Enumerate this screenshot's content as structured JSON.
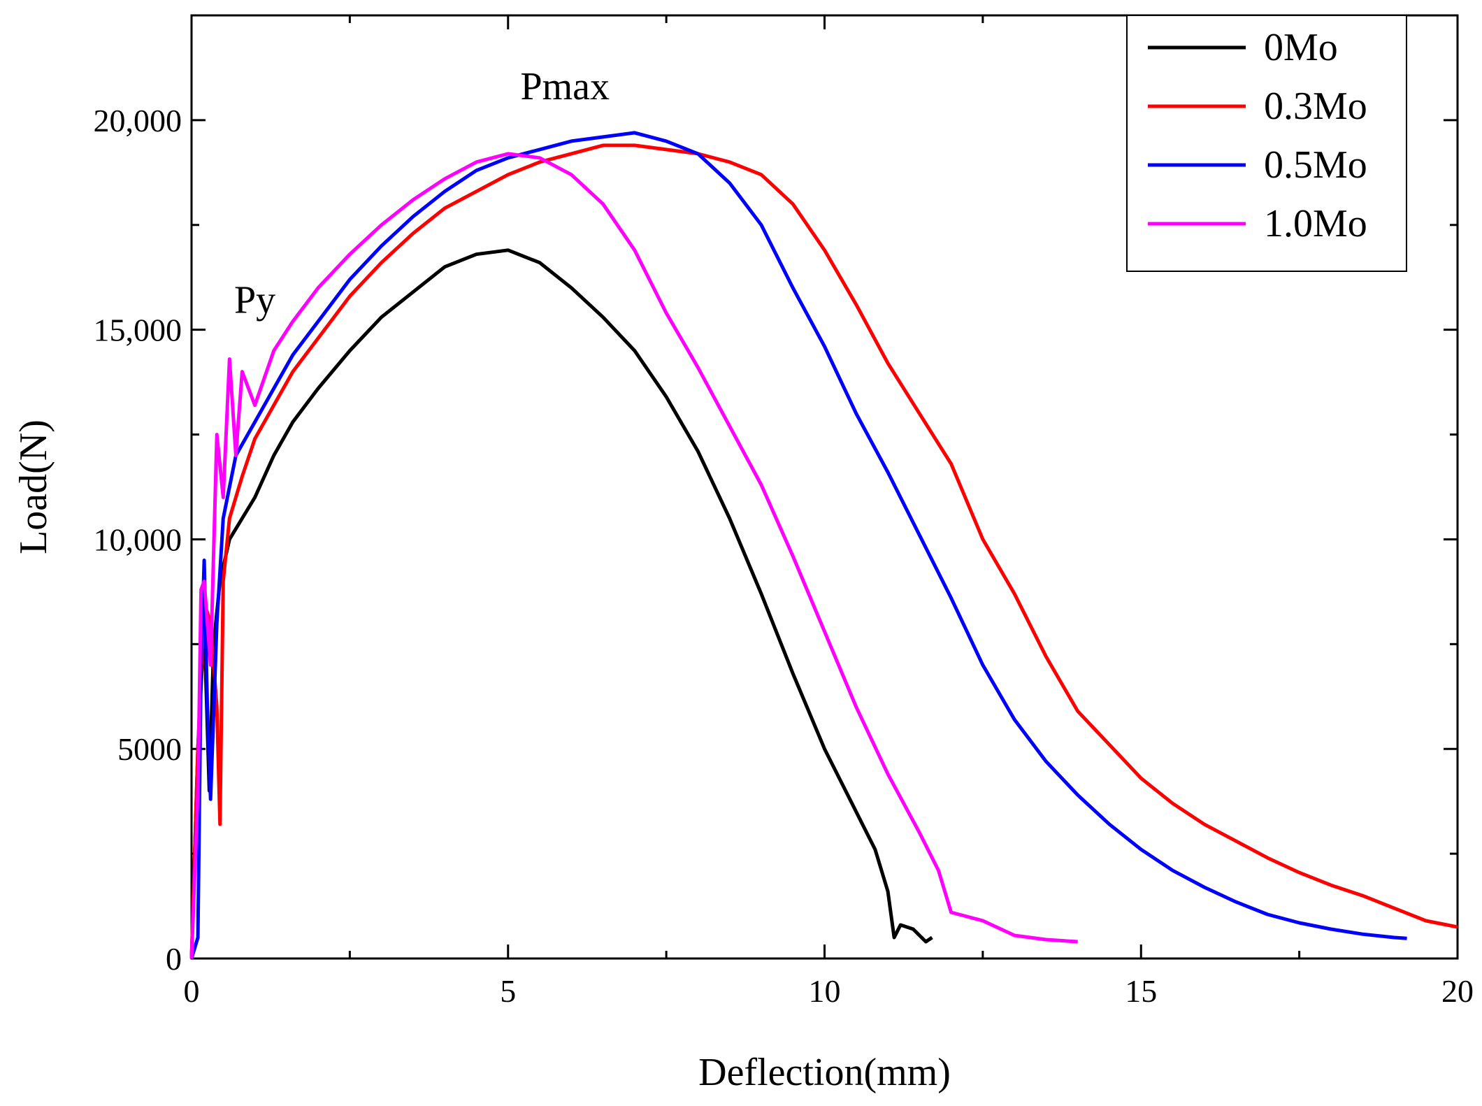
{
  "chart_data": {
    "type": "line",
    "xlabel": "Deflection(mm)",
    "ylabel": "Load(N)",
    "xlim": [
      0,
      20
    ],
    "ylim": [
      0,
      22500
    ],
    "x_ticks": [
      0,
      5,
      10,
      15,
      20
    ],
    "x_tick_labels": [
      "0",
      "5",
      "10",
      "15",
      "20"
    ],
    "y_ticks": [
      0,
      5000,
      10000,
      15000,
      20000
    ],
    "y_tick_labels": [
      "0",
      "5000",
      "10,000",
      "15,000",
      "20,000"
    ],
    "grid": false,
    "legend_position": "top-right",
    "annotations": [
      {
        "text": "Pmax",
        "x": 5.9,
        "y": 20500
      },
      {
        "text": "Py",
        "x": 1.0,
        "y": 15400
      }
    ],
    "series": [
      {
        "name": "0Mo",
        "color": "#000000",
        "x": [
          0,
          0.1,
          0.2,
          0.28,
          0.35,
          0.45,
          0.6,
          0.8,
          1.0,
          1.3,
          1.6,
          2.0,
          2.5,
          3.0,
          3.5,
          4.0,
          4.5,
          5.0,
          5.5,
          6.0,
          6.5,
          7.0,
          7.5,
          8.0,
          8.5,
          9.0,
          9.5,
          10.0,
          10.5,
          10.8,
          11.0,
          11.1,
          11.2,
          11.4,
          11.6,
          11.7
        ],
        "y": [
          0,
          5000,
          8000,
          4000,
          7500,
          9000,
          10000,
          10500,
          11000,
          12000,
          12800,
          13600,
          14500,
          15300,
          15900,
          16500,
          16800,
          16900,
          16600,
          16000,
          15300,
          14500,
          13400,
          12100,
          10500,
          8700,
          6800,
          5000,
          3500,
          2600,
          1600,
          500,
          800,
          700,
          400,
          500
        ]
      },
      {
        "name": "0.3Mo",
        "color": "#ff0000",
        "x": [
          0,
          0.1,
          0.2,
          0.3,
          0.4,
          0.45,
          0.5,
          0.6,
          0.8,
          1.0,
          1.3,
          1.6,
          2.0,
          2.5,
          3.0,
          3.5,
          4.0,
          4.5,
          5.0,
          5.5,
          6.0,
          6.5,
          7.0,
          7.5,
          8.0,
          8.5,
          9.0,
          9.5,
          10.0,
          10.5,
          11.0,
          11.5,
          12.0,
          12.5,
          13.0,
          13.5,
          14.0,
          14.5,
          15.0,
          15.5,
          16.0,
          16.5,
          17.0,
          17.5,
          18.0,
          18.5,
          19.0,
          19.5,
          20.0
        ],
        "y": [
          0,
          5000,
          8500,
          8000,
          6000,
          3200,
          9000,
          10500,
          11500,
          12400,
          13200,
          14000,
          14800,
          15800,
          16600,
          17300,
          17900,
          18300,
          18700,
          19000,
          19200,
          19400,
          19400,
          19300,
          19200,
          19000,
          18700,
          18000,
          16900,
          15600,
          14200,
          13000,
          11800,
          10000,
          8700,
          7200,
          5900,
          5100,
          4300,
          3700,
          3200,
          2800,
          2400,
          2050,
          1750,
          1500,
          1200,
          900,
          750
        ]
      },
      {
        "name": "0.5Mo",
        "color": "#0000ff",
        "x": [
          0,
          0.1,
          0.15,
          0.2,
          0.25,
          0.3,
          0.4,
          0.5,
          0.7,
          1.0,
          1.3,
          1.6,
          2.0,
          2.5,
          3.0,
          3.5,
          4.0,
          4.5,
          5.0,
          5.5,
          6.0,
          6.5,
          7.0,
          7.5,
          8.0,
          8.5,
          9.0,
          9.5,
          10.0,
          10.5,
          11.0,
          11.5,
          12.0,
          12.5,
          13.0,
          13.5,
          14.0,
          14.5,
          15.0,
          15.5,
          16.0,
          16.5,
          17.0,
          17.5,
          18.0,
          18.5,
          19.0,
          19.2
        ],
        "y": [
          0,
          500,
          7000,
          9500,
          6000,
          3800,
          8000,
          10500,
          12000,
          12800,
          13600,
          14400,
          15200,
          16200,
          17000,
          17700,
          18300,
          18800,
          19100,
          19300,
          19500,
          19600,
          19700,
          19500,
          19200,
          18500,
          17500,
          16000,
          14600,
          13000,
          11600,
          10100,
          8600,
          7000,
          5700,
          4700,
          3900,
          3200,
          2600,
          2100,
          1700,
          1350,
          1050,
          850,
          700,
          580,
          500,
          480
        ]
      },
      {
        "name": "1.0Mo",
        "color": "#ff00ff",
        "x": [
          0,
          0.1,
          0.15,
          0.2,
          0.3,
          0.4,
          0.5,
          0.6,
          0.7,
          0.8,
          1.0,
          1.3,
          1.6,
          2.0,
          2.5,
          3.0,
          3.5,
          4.0,
          4.5,
          5.0,
          5.5,
          6.0,
          6.5,
          7.0,
          7.5,
          8.0,
          8.5,
          9.0,
          9.5,
          10.0,
          10.5,
          11.0,
          11.5,
          11.8,
          12.0,
          12.5,
          13.0,
          13.5,
          14.0
        ],
        "y": [
          0,
          4000,
          8800,
          9000,
          7000,
          12500,
          11000,
          14300,
          12000,
          14000,
          13200,
          14500,
          15200,
          16000,
          16800,
          17500,
          18100,
          18600,
          19000,
          19200,
          19100,
          18700,
          18000,
          16900,
          15400,
          14100,
          12700,
          11300,
          9600,
          7800,
          6000,
          4400,
          3000,
          2100,
          1100,
          900,
          550,
          450,
          400
        ]
      }
    ]
  }
}
